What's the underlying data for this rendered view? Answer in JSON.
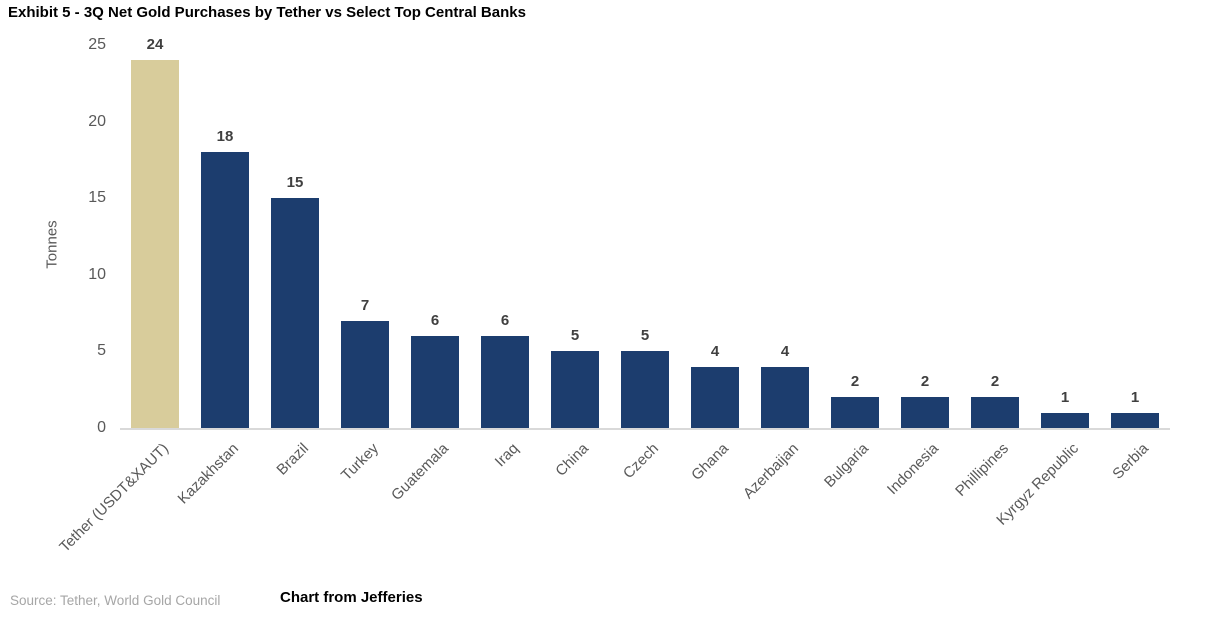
{
  "title": "Exhibit 5 - 3Q Net Gold Purchases by Tether vs Select Top Central Banks",
  "footer": {
    "source": "Source: Tether, World Gold Council",
    "credit": "Chart from Jefferies"
  },
  "colors": {
    "highlight_bar": "#d8cc9b",
    "bar": "#1c3d6e",
    "axis_text": "#595959",
    "value_label": "#404040",
    "baseline": "#d9d9d9",
    "source_text": "#a6a6a6",
    "title_text": "#000000"
  },
  "chart_data": {
    "type": "bar",
    "title": "Exhibit 5 - 3Q Net Gold Purchases by Tether vs Select Top Central Banks",
    "xlabel": "",
    "ylabel": "Tonnes",
    "ylim": [
      0,
      25
    ],
    "yticks": [
      0,
      5,
      10,
      15,
      20,
      25
    ],
    "grid": false,
    "legend_position": "none",
    "highlight_index": 0,
    "categories": [
      "Tether (USDT&XAUT)",
      "Kazakhstan",
      "Brazil",
      "Turkey",
      "Guatemala",
      "Iraq",
      "China",
      "Czech",
      "Ghana",
      "Azerbaijan",
      "Bulgaria",
      "Indonesia",
      "Phillipines",
      "Kyrgyz Republic",
      "Serbia"
    ],
    "values": [
      24,
      18,
      15,
      7,
      6,
      6,
      5,
      5,
      4,
      4,
      2,
      2,
      2,
      1,
      1
    ]
  }
}
